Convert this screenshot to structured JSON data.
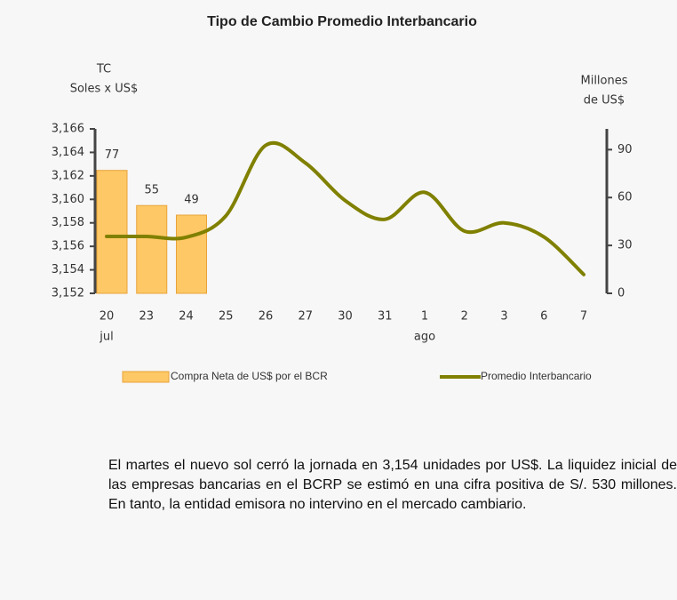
{
  "chart_data": {
    "type": "bar-line",
    "title": "Tipo de Cambio Promedio Interbancario",
    "y_label": [
      "TC",
      "Soles x US$"
    ],
    "y2_label": [
      "Millones",
      "de US$"
    ],
    "categories": [
      "20",
      "23",
      "24",
      "25",
      "26",
      "27",
      "30",
      "31",
      "1",
      "2",
      "3",
      "6",
      "7"
    ],
    "x_group_labels": [
      {
        "label": "jul",
        "index": 0
      },
      {
        "label": "ago",
        "index": 8
      }
    ],
    "ylim": [
      3152,
      3166
    ],
    "yticks": [
      {
        "value": 3152,
        "label": "3,152"
      },
      {
        "value": 3154,
        "label": "3,154"
      },
      {
        "value": 3156,
        "label": "3,156"
      },
      {
        "value": 3158,
        "label": "3,158"
      },
      {
        "value": 3160,
        "label": "3,160"
      },
      {
        "value": 3162,
        "label": "3,162"
      },
      {
        "value": 3164,
        "label": "3,164"
      },
      {
        "value": 3166,
        "label": "3,166"
      }
    ],
    "y2lim": [
      0,
      103
    ],
    "y2ticks": [
      0,
      30,
      60,
      90
    ],
    "series": [
      {
        "name": "Compra Neta de US$ por el BCR",
        "type": "bar",
        "axis": "y2",
        "color": "#fdc865",
        "values": [
          77,
          55,
          49,
          null,
          null,
          null,
          null,
          null,
          null,
          null,
          null,
          null,
          null
        ]
      },
      {
        "name": "Promedio Interbancario",
        "type": "line",
        "axis": "y",
        "color": "#808000",
        "values": [
          3156.84,
          3156.84,
          3156.77,
          3158.6,
          3164.6,
          3163.1,
          3159.9,
          3158.3,
          3160.6,
          3157.3,
          3158.0,
          3156.8,
          3153.6
        ]
      }
    ],
    "legend": "bottom"
  },
  "text": "El martes el nuevo sol cerró la jornada en 3,154 unidades por US$. La liquidez inicial de las empresas bancarias en el BCRP se estimó en una cifra positiva de S/. 530 millones. En tanto, la entidad emisora no intervino en el mercado cambiario."
}
